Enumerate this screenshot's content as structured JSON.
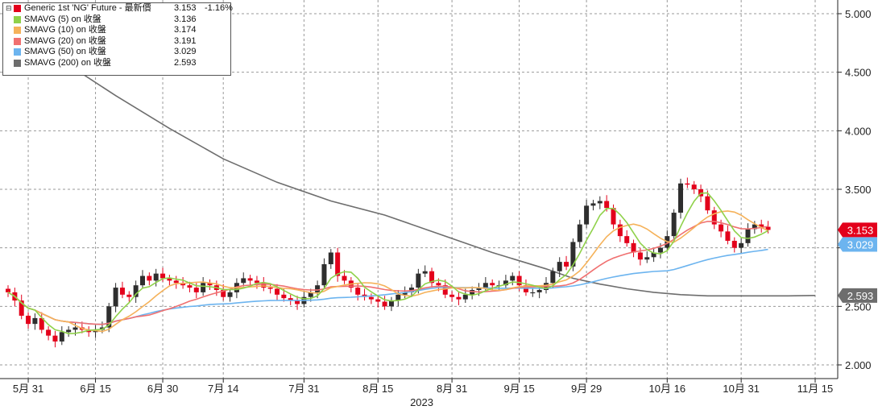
{
  "chart_data": {
    "type": "candlestick",
    "ylim": [
      1.9,
      5.1
    ],
    "yticks": [
      {
        "v": 2.0,
        "label": "2.000"
      },
      {
        "v": 2.5,
        "label": "2.500"
      },
      {
        "v": 3.0,
        "label": "3.000"
      },
      {
        "v": 3.5,
        "label": "3.500"
      },
      {
        "v": 4.0,
        "label": "4.000"
      },
      {
        "v": 4.5,
        "label": "4.500"
      },
      {
        "v": 5.0,
        "label": "5.000"
      }
    ],
    "xticks": [
      {
        "i": 3,
        "label": "5月 31"
      },
      {
        "i": 13,
        "label": "6月 15"
      },
      {
        "i": 23,
        "label": "6月 30"
      },
      {
        "i": 32,
        "label": "7月 14"
      },
      {
        "i": 44,
        "label": "7月 31"
      },
      {
        "i": 55,
        "label": "8月 15"
      },
      {
        "i": 66,
        "label": "8月 31"
      },
      {
        "i": 76,
        "label": "9月 15"
      },
      {
        "i": 86,
        "label": "9月 29"
      },
      {
        "i": 98,
        "label": "10月 16"
      },
      {
        "i": 109,
        "label": "10月 31"
      },
      {
        "i": 120,
        "label": "11月 15"
      }
    ],
    "year_label": "2023",
    "grid": true,
    "legend_position": "top-left",
    "up_color": "#2e2e2e",
    "down_color": "#e3001b",
    "series_colors": {
      "sma5": "#8fd14a",
      "sma10": "#f5b25a",
      "sma20": "#f07070",
      "sma50": "#6cb4ef",
      "sma200": "#6d6d6d"
    },
    "legend": [
      {
        "name": "Generic 1st 'NG' Future - 最新價",
        "value": "3.153",
        "change": "-1.16%",
        "color": "#e3001b"
      },
      {
        "name": "SMAVG (5)  on 收盤",
        "value": "3.136",
        "change": "",
        "color": "#8fd14a"
      },
      {
        "name": "SMAVG (10)  on 收盤",
        "value": "3.174",
        "change": "",
        "color": "#f5b25a"
      },
      {
        "name": "SMAVG (20)  on 收盤",
        "value": "3.191",
        "change": "",
        "color": "#f07070"
      },
      {
        "name": "SMAVG (50)  on 收盤",
        "value": "3.029",
        "change": "",
        "color": "#6cb4ef"
      },
      {
        "name": "SMAVG (200)  on 收盤",
        "value": "2.593",
        "change": "",
        "color": "#6d6d6d"
      }
    ],
    "last_labels": [
      {
        "label": "3.153",
        "v": 3.153,
        "color": "#e3001b"
      },
      {
        "label": "3.029",
        "v": 3.029,
        "color": "#6cb4ef"
      },
      {
        "label": "2.593",
        "v": 2.593,
        "color": "#6d6d6d"
      }
    ],
    "closes": [
      2.62,
      2.55,
      2.42,
      2.35,
      2.4,
      2.3,
      2.25,
      2.2,
      2.28,
      2.3,
      2.32,
      2.3,
      2.28,
      2.3,
      2.32,
      2.5,
      2.66,
      2.6,
      2.58,
      2.68,
      2.76,
      2.72,
      2.78,
      2.74,
      2.72,
      2.7,
      2.68,
      2.66,
      2.62,
      2.7,
      2.68,
      2.64,
      2.58,
      2.62,
      2.7,
      2.74,
      2.72,
      2.7,
      2.66,
      2.65,
      2.6,
      2.57,
      2.55,
      2.52,
      2.58,
      2.62,
      2.68,
      2.86,
      2.96,
      2.76,
      2.72,
      2.66,
      2.6,
      2.58,
      2.56,
      2.54,
      2.5,
      2.55,
      2.6,
      2.62,
      2.66,
      2.78,
      2.8,
      2.7,
      2.68,
      2.6,
      2.58,
      2.56,
      2.6,
      2.64,
      2.66,
      2.7,
      2.68,
      2.68,
      2.72,
      2.76,
      2.68,
      2.62,
      2.62,
      2.64,
      2.7,
      2.8,
      2.88,
      2.84,
      3.05,
      3.2,
      3.36,
      3.38,
      3.4,
      3.34,
      3.2,
      3.1,
      3.04,
      2.96,
      2.9,
      2.92,
      2.96,
      3.0,
      3.1,
      3.3,
      3.55,
      3.54,
      3.5,
      3.44,
      3.32,
      3.2,
      3.14,
      3.06,
      3.0,
      3.04,
      3.16,
      3.2,
      3.18,
      3.153
    ],
    "sma200": {
      "x": [
        0,
        8,
        16,
        24,
        32,
        40,
        48,
        56,
        64,
        72,
        80,
        84,
        88,
        92,
        96,
        100,
        104,
        108,
        112,
        116,
        120
      ],
      "y": [
        4.92,
        4.6,
        4.3,
        4.02,
        3.76,
        3.56,
        3.4,
        3.28,
        3.12,
        2.96,
        2.82,
        2.74,
        2.69,
        2.65,
        2.62,
        2.6,
        2.59,
        2.59,
        2.59,
        2.59,
        2.593
      ]
    }
  }
}
